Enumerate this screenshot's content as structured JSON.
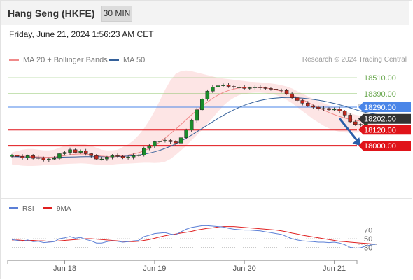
{
  "header": {
    "instrument": "Hang Seng (HKFE)",
    "timeframe": "30 MIN"
  },
  "datetime": "Friday, June 21, 2024 1:56:23 AM CET",
  "legend": {
    "ma20_label": "MA 20 + Bollinger Bands",
    "ma50_label": "MA 50",
    "copyright": "Research © 2024 Trading Central"
  },
  "colors": {
    "ma20": "#f08a8a",
    "ma50": "#34609a",
    "bollinger_fill": "#fde0e0",
    "candle_up": "#1a8c2a",
    "candle_down": "#c0281e",
    "resistance": "#8cc46a",
    "pivot": "#4a86e8",
    "support": "#e0141a",
    "current_price": "#333333",
    "rsi": "#5b7fd6",
    "rsi_ma": "#e02020",
    "arrow": "#2a5ea8"
  },
  "chart_data": [
    {
      "type": "candlestick",
      "title": "Hang Seng (HKFE)",
      "timeframe": "30 MIN",
      "ylim": [
        17590,
        18590
      ],
      "x_ticks": [
        {
          "label": "Jun 18",
          "t": 10
        },
        {
          "label": "Jun 19",
          "t": 27
        },
        {
          "label": "Jun 20",
          "t": 44
        },
        {
          "label": "Jun 21",
          "t": 61
        }
      ],
      "levels": [
        {
          "label": "18510.00",
          "value": 18510,
          "kind": "resistance"
        },
        {
          "label": "18390.00",
          "value": 18390,
          "kind": "resistance"
        },
        {
          "label": "18290.00",
          "value": 18290,
          "kind": "pivot"
        },
        {
          "label": "18202.00",
          "value": 18202,
          "kind": "current"
        },
        {
          "label": "18120.00",
          "value": 18120,
          "kind": "support"
        },
        {
          "label": "18000.00",
          "value": 18000,
          "kind": "support"
        }
      ],
      "forecast_arrow": {
        "from": [
          62,
          18205
        ],
        "to": [
          66,
          18000
        ],
        "direction": "down"
      },
      "close": [
        17930,
        17920,
        17910,
        17925,
        17905,
        17910,
        17895,
        17900,
        17905,
        17940,
        17950,
        17970,
        17950,
        17960,
        17940,
        17925,
        17900,
        17900,
        17915,
        17925,
        17920,
        17910,
        17915,
        17925,
        17930,
        17980,
        18000,
        18030,
        18035,
        18040,
        18030,
        18020,
        18060,
        18120,
        18190,
        18270,
        18350,
        18410,
        18440,
        18450,
        18455,
        18445,
        18440,
        18440,
        18430,
        18435,
        18440,
        18435,
        18430,
        18425,
        18420,
        18415,
        18390,
        18360,
        18340,
        18320,
        18300,
        18290,
        18280,
        18280,
        18270,
        18275,
        18260,
        18230,
        18180,
        18160,
        18160,
        18180,
        18200,
        18202
      ],
      "ma20": [
        17920,
        17922,
        17921,
        17920,
        17918,
        17916,
        17914,
        17913,
        17915,
        17920,
        17926,
        17932,
        17936,
        17938,
        17937,
        17933,
        17927,
        17922,
        17919,
        17918,
        17920,
        17925,
        17930,
        17938,
        17948,
        17962,
        17980,
        18002,
        18028,
        18058,
        18090,
        18124,
        18160,
        18196,
        18232,
        18266,
        18298,
        18328,
        18356,
        18380,
        18400,
        18415,
        18426,
        18433,
        18437,
        18439,
        18439,
        18437,
        18433,
        18427,
        18419,
        18409,
        18396,
        18381,
        18364,
        18346,
        18327,
        18307,
        18287,
        18268,
        18250,
        18234,
        18220,
        18208,
        18198,
        18190,
        18185,
        18183,
        18183,
        18184
      ],
      "bb_upper": [
        17950,
        17960,
        17970,
        17975,
        17975,
        17970,
        17965,
        17965,
        17970,
        17985,
        18000,
        18010,
        18015,
        18015,
        18010,
        18000,
        17985,
        17970,
        17965,
        17965,
        17970,
        17990,
        18010,
        18040,
        18080,
        18130,
        18190,
        18260,
        18340,
        18420,
        18490,
        18540,
        18560,
        18565,
        18560,
        18550,
        18540,
        18530,
        18520,
        18510,
        18505,
        18500,
        18495,
        18490,
        18485,
        18480,
        18478,
        18475,
        18472,
        18468,
        18462,
        18455,
        18445,
        18430,
        18410,
        18390,
        18370,
        18352,
        18335,
        18320,
        18305,
        18290,
        18275,
        18260,
        18245,
        18232,
        18225,
        18220,
        18218,
        18218
      ],
      "bb_lower": [
        17860,
        17855,
        17850,
        17848,
        17848,
        17850,
        17853,
        17856,
        17858,
        17860,
        17862,
        17864,
        17866,
        17868,
        17866,
        17862,
        17858,
        17855,
        17855,
        17858,
        17862,
        17864,
        17866,
        17868,
        17870,
        17872,
        17872,
        17870,
        17872,
        17880,
        17900,
        17930,
        17965,
        18000,
        18040,
        18080,
        18120,
        18165,
        18210,
        18255,
        18300,
        18335,
        18360,
        18380,
        18390,
        18395,
        18398,
        18398,
        18395,
        18390,
        18380,
        18365,
        18345,
        18320,
        18290,
        18260,
        18230,
        18200,
        18175,
        18150,
        18130,
        18115,
        18105,
        18100,
        18098,
        18098,
        18100,
        18105,
        18110,
        18112
      ],
      "ma50": [
        17918,
        17917,
        17916,
        17915,
        17914,
        17913,
        17912,
        17912,
        17912,
        17913,
        17914,
        17915,
        17916,
        17917,
        17918,
        17918,
        17918,
        17918,
        17918,
        17918,
        17919,
        17920,
        17922,
        17925,
        17930,
        17936,
        17944,
        17954,
        17966,
        17980,
        17996,
        18014,
        18034,
        18056,
        18080,
        18105,
        18130,
        18155,
        18180,
        18205,
        18228,
        18250,
        18270,
        18288,
        18304,
        18318,
        18330,
        18340,
        18348,
        18354,
        18358,
        18361,
        18362,
        18362,
        18360,
        18357,
        18353,
        18348,
        18342,
        18335,
        18327,
        18318,
        18308,
        18297,
        18285,
        18272,
        18260,
        18250,
        18242,
        18236
      ]
    },
    {
      "type": "line",
      "title": "RSI",
      "ylim": [
        0,
        100
      ],
      "y_ticks": [
        70,
        50,
        30
      ],
      "series": [
        {
          "name": "RSI",
          "values": [
            48,
            46,
            44,
            47,
            43,
            44,
            41,
            42,
            43,
            50,
            52,
            55,
            51,
            53,
            48,
            45,
            40,
            40,
            43,
            45,
            44,
            42,
            43,
            45,
            46,
            55,
            58,
            62,
            63,
            64,
            61,
            59,
            66,
            72,
            76,
            78,
            80,
            80,
            79,
            78,
            77,
            74,
            72,
            71,
            70,
            70,
            69,
            68,
            66,
            64,
            62,
            60,
            55,
            50,
            47,
            45,
            44,
            43,
            42,
            42,
            41,
            42,
            40,
            36,
            30,
            28,
            29,
            33,
            36,
            37
          ]
        },
        {
          "name": "9MA",
          "values": [
            47,
            47,
            46,
            46,
            46,
            45,
            45,
            44,
            44,
            45,
            46,
            47,
            48,
            49,
            50,
            50,
            49,
            48,
            47,
            46,
            45,
            44,
            43,
            43,
            44,
            46,
            48,
            51,
            54,
            57,
            59,
            61,
            63,
            65,
            67,
            70,
            72,
            74,
            75,
            77,
            78,
            78,
            78,
            77,
            76,
            75,
            74,
            73,
            72,
            71,
            70,
            68,
            66,
            63,
            61,
            58,
            56,
            54,
            52,
            50,
            48,
            46,
            44,
            43,
            42,
            41,
            40,
            39,
            38,
            37
          ]
        }
      ]
    }
  ]
}
